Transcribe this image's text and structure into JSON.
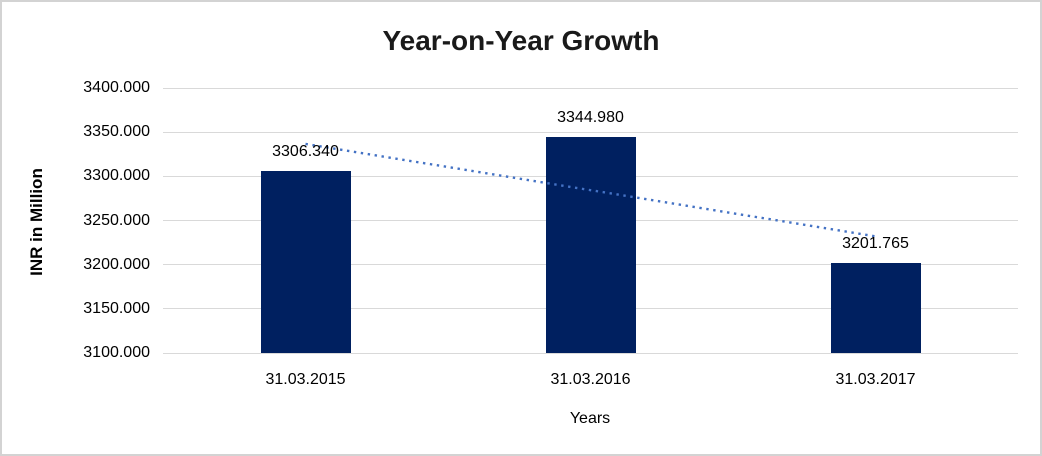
{
  "chart_data": {
    "type": "bar",
    "title": "Year-on-Year Growth",
    "xlabel": "Years",
    "ylabel": "INR in Million",
    "categories": [
      "31.03.2015",
      "31.03.2016",
      "31.03.2017"
    ],
    "values": [
      3306.34,
      3344.98,
      3201.765
    ],
    "value_labels": [
      "3306.340",
      "3344.980",
      "3201.765"
    ],
    "ylim": [
      3100,
      3400
    ],
    "yticks": [
      3100,
      3150,
      3200,
      3250,
      3300,
      3350,
      3400
    ],
    "ytick_labels": [
      "3100.000",
      "3150.000",
      "3200.000",
      "3250.000",
      "3300.000",
      "3350.000",
      "3400.000"
    ],
    "grid": true,
    "legend": "none",
    "trendline": {
      "type": "linear",
      "style": "dotted"
    },
    "colors": {
      "bar": "#002060",
      "trendline": "#4472c4",
      "gridline": "#d9d9d9",
      "frame_border": "#d3d3d3",
      "title_text": "#1a1a1a",
      "text": "#000000",
      "background": "#ffffff"
    }
  }
}
